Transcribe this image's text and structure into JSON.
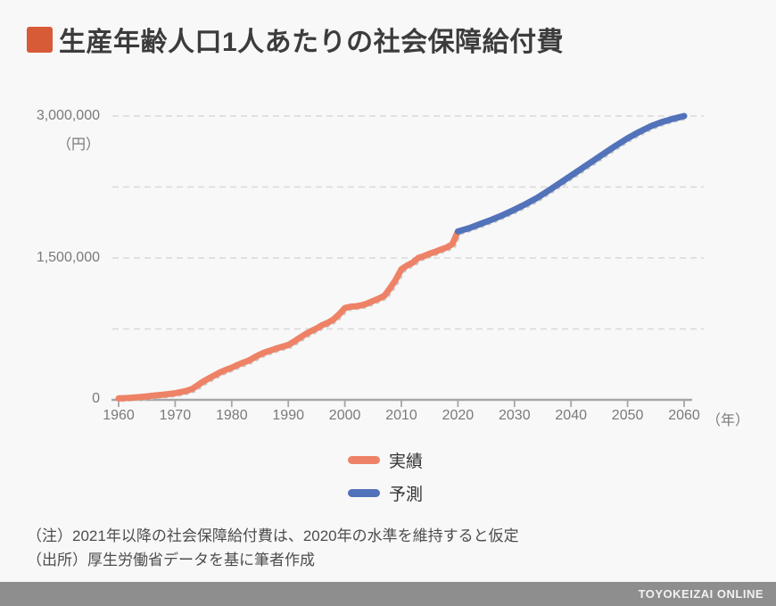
{
  "title": {
    "text": "生産年齢人口1人あたりの社会保障給付費",
    "bullet_color": "#d85b38"
  },
  "chart_data": {
    "type": "line",
    "title": "生産年齢人口1人あたりの社会保障給付費",
    "xlabel": "（年）",
    "ylabel": "（円）",
    "xlim": [
      1960,
      2060
    ],
    "ylim": [
      0,
      3000000
    ],
    "grid": "horizontal-dashed",
    "gridline_values": [
      750000,
      1500000,
      2250000,
      3000000
    ],
    "x_ticks": [
      1960,
      1970,
      1980,
      1990,
      2000,
      2010,
      2020,
      2030,
      2040,
      2050,
      2060
    ],
    "y_tick_values": [
      0,
      1500000,
      3000000
    ],
    "y_tick_labels": [
      "0",
      "1,500,000",
      "3,000,000"
    ],
    "legend_position": "bottom",
    "series": [
      {
        "name": "実績",
        "color": "#ee8266",
        "x": [
          1960,
          1961,
          1962,
          1963,
          1964,
          1965,
          1966,
          1967,
          1968,
          1969,
          1970,
          1971,
          1972,
          1973,
          1974,
          1975,
          1976,
          1977,
          1978,
          1979,
          1980,
          1981,
          1982,
          1983,
          1984,
          1985,
          1986,
          1987,
          1988,
          1989,
          1990,
          1991,
          1992,
          1993,
          1994,
          1995,
          1996,
          1997,
          1998,
          1999,
          2000,
          2001,
          2002,
          2003,
          2004,
          2005,
          2006,
          2007,
          2008,
          2009,
          2010,
          2011,
          2012,
          2013,
          2014,
          2015,
          2016,
          2017,
          2018,
          2019,
          2020
        ],
        "values": [
          15000,
          18000,
          22000,
          26000,
          31000,
          37000,
          43000,
          50000,
          56000,
          62000,
          70000,
          82000,
          95000,
          115000,
          155000,
          195000,
          228000,
          260000,
          292000,
          318000,
          340000,
          368000,
          392000,
          415000,
          448000,
          480000,
          505000,
          525000,
          545000,
          562000,
          580000,
          615000,
          655000,
          692000,
          725000,
          755000,
          790000,
          815000,
          850000,
          905000,
          970000,
          985000,
          990000,
          1000000,
          1020000,
          1045000,
          1070000,
          1100000,
          1180000,
          1270000,
          1380000,
          1420000,
          1450000,
          1500000,
          1520000,
          1545000,
          1565000,
          1590000,
          1610000,
          1645000,
          1780000
        ]
      },
      {
        "name": "予測",
        "color": "#5273ba",
        "x": [
          2020,
          2022,
          2024,
          2026,
          2028,
          2030,
          2032,
          2034,
          2036,
          2038,
          2040,
          2042,
          2044,
          2046,
          2048,
          2050,
          2052,
          2054,
          2056,
          2058,
          2060
        ],
        "values": [
          1780000,
          1815000,
          1860000,
          1905000,
          1955000,
          2010000,
          2070000,
          2135000,
          2210000,
          2290000,
          2370000,
          2450000,
          2530000,
          2610000,
          2690000,
          2765000,
          2830000,
          2890000,
          2935000,
          2970000,
          3000000
        ]
      }
    ]
  },
  "legend": {
    "items": [
      {
        "label": "実績",
        "color": "#ee8266"
      },
      {
        "label": "予測",
        "color": "#5273ba"
      }
    ]
  },
  "notes": {
    "note": "（注）2021年以降の社会保障給付費は、2020年の水準を維持すると仮定",
    "source": "（出所）厚生労働省データを基に筆者作成"
  },
  "footer": {
    "brand": "TOYOKEIZAI ONLINE",
    "background": "#8e8e8e"
  }
}
